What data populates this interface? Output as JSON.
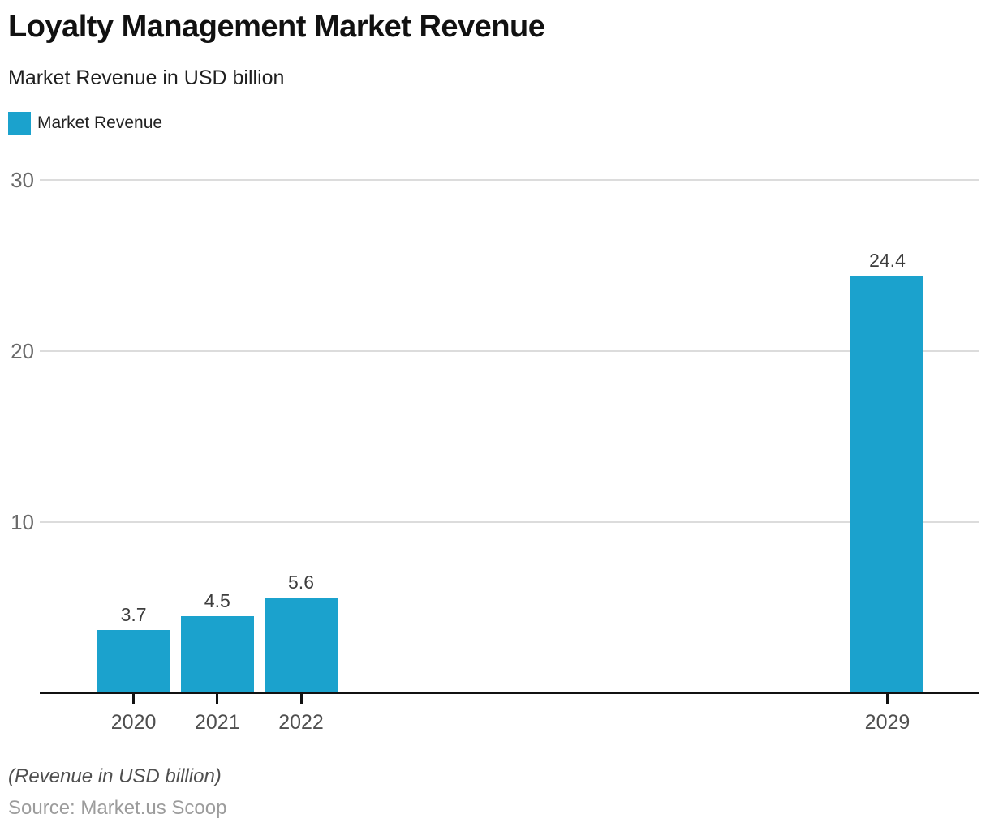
{
  "header": {
    "title": "Loyalty Management Market Revenue",
    "subtitle": "Market Revenue in USD billion"
  },
  "legend": {
    "label": "Market Revenue",
    "swatch_color": "#1ba2cd"
  },
  "chart_data": {
    "type": "bar",
    "title": "Loyalty Management Market Revenue",
    "subtitle": "Market Revenue in USD billion",
    "series_name": "Market Revenue",
    "categories": [
      "2020",
      "2021",
      "2022",
      "2029"
    ],
    "x": [
      2020,
      2021,
      2022,
      2029
    ],
    "values": [
      3.7,
      4.5,
      5.6,
      24.4
    ],
    "value_labels": [
      "3.7",
      "4.5",
      "5.6",
      "24.4"
    ],
    "xlabel": "",
    "ylabel": "",
    "yticks": [
      10,
      20,
      30
    ],
    "ylim": [
      0,
      31
    ],
    "xlim": [
      2018.88,
      2030.09
    ],
    "bar_color": "#1ba2cd",
    "axis_color": "#111111",
    "gridline_color": "#dcdcdc",
    "grid": "horizontal",
    "legend_position": "top-left"
  },
  "footer": {
    "note": "(Revenue in USD billion)",
    "source": "Source: Market.us Scoop"
  }
}
